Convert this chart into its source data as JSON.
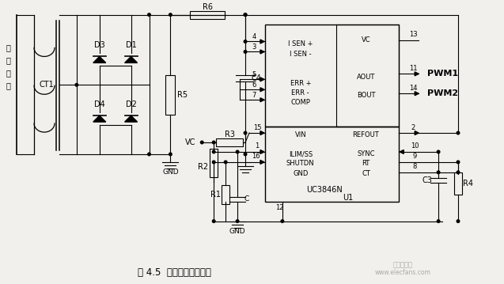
{
  "caption": "图 4.5  电流检测反馈电路",
  "bg_color": "#f2f0ed",
  "fig_width": 6.37,
  "fig_height": 3.59,
  "dpi": 100,
  "dc_bus": "直流母线",
  "watermark_cn": "电子发烧友",
  "watermark_en": "www.elecfans.com",
  "ic_label": "UC3846N",
  "ic_sub": "U1"
}
